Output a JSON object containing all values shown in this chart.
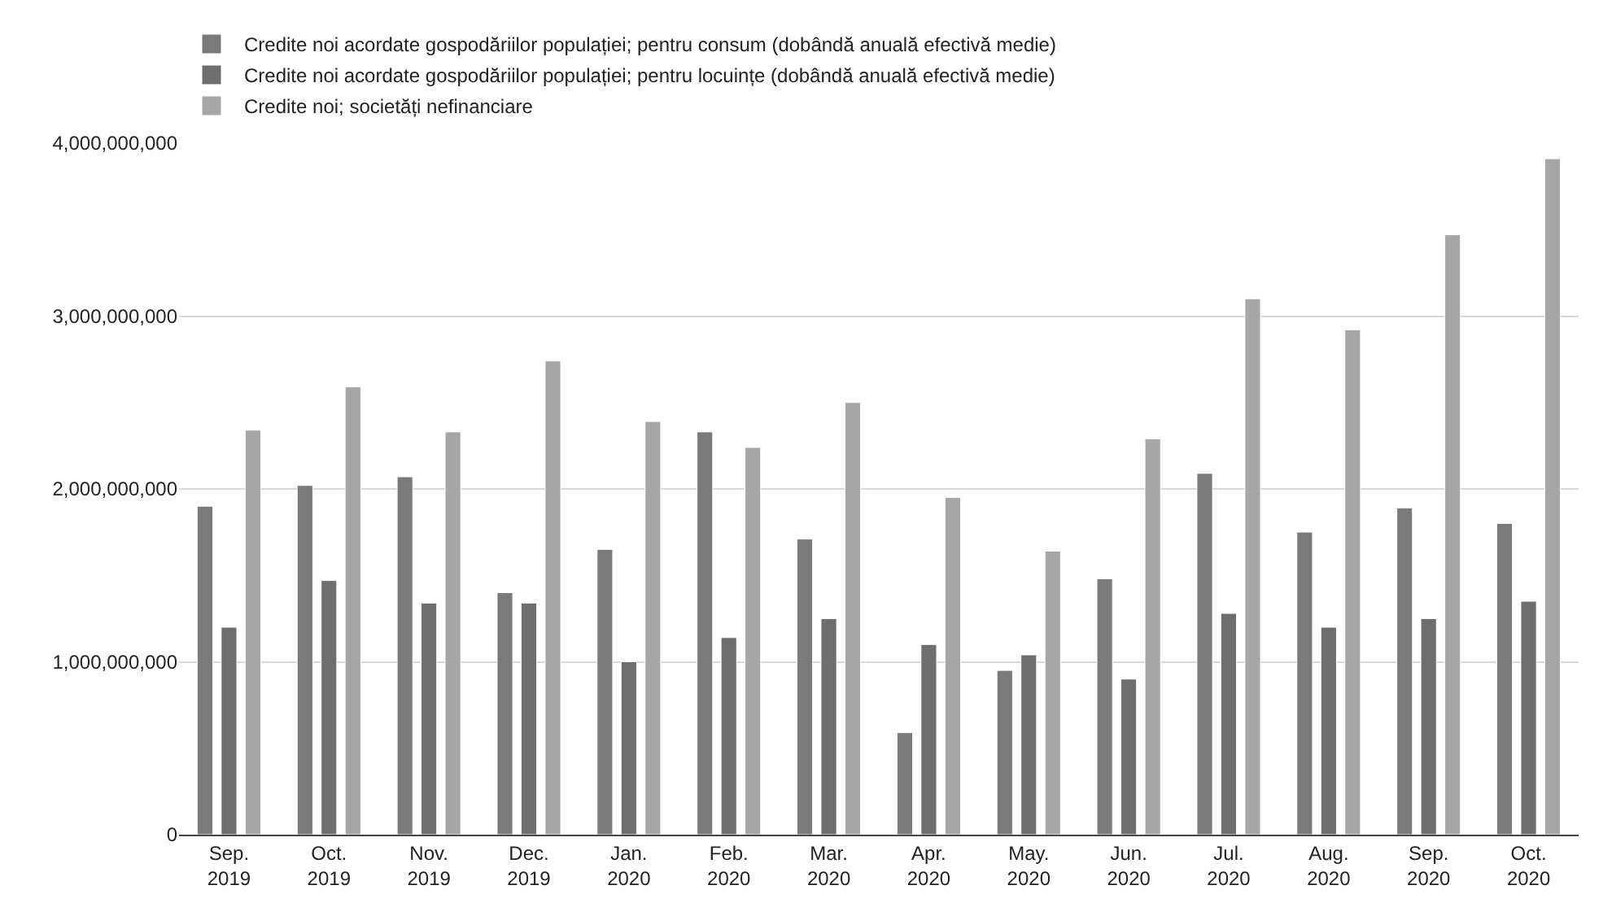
{
  "chart_data": {
    "type": "bar",
    "categories": [
      "Sep.\n2019",
      "Oct.\n2019",
      "Nov.\n2019",
      "Dec.\n2019",
      "Jan.\n2020",
      "Feb.\n2020",
      "Mar.\n2020",
      "Apr.\n2020",
      "May.\n2020",
      "Jun.\n2020",
      "Jul.\n2020",
      "Aug.\n2020",
      "Sep.\n2020",
      "Oct.\n2020"
    ],
    "series": [
      {
        "name": "Credite noi acordate gospodăriilor populației; pentru consum (dobândă anuală efectivă medie)",
        "color": "#7a7a7a",
        "values": [
          1900000000,
          2020000000,
          2070000000,
          1400000000,
          1650000000,
          2330000000,
          1710000000,
          590000000,
          950000000,
          1480000000,
          2090000000,
          1750000000,
          1890000000,
          1800000000
        ]
      },
      {
        "name": "Credite noi acordate gospodăriilor populației; pentru locuințe (dobândă anuală efectivă medie)",
        "color": "#6e6e6e",
        "values": [
          1200000000,
          1470000000,
          1340000000,
          1340000000,
          1000000000,
          1140000000,
          1250000000,
          1100000000,
          1040000000,
          900000000,
          1280000000,
          1200000000,
          1250000000,
          1350000000
        ]
      },
      {
        "name": "Credite noi; societăți nefinanciare",
        "color": "#a6a6a6",
        "values": [
          2340000000,
          2590000000,
          2330000000,
          2740000000,
          2390000000,
          2240000000,
          2500000000,
          1950000000,
          1640000000,
          2290000000,
          3100000000,
          2920000000,
          3470000000,
          3910000000
        ]
      }
    ],
    "ylim": [
      0,
      4000000000
    ],
    "yticks": [
      0,
      {
        "value": 1000000000,
        "label": "1,000,000,000"
      },
      {
        "value": 2000000000,
        "label": "2,000,000,000"
      },
      {
        "value": 3000000000,
        "label": "3,000,000,000"
      },
      {
        "value": 4000000000,
        "label": "4,000,000,000"
      }
    ],
    "grid": "y",
    "legend": "top left"
  }
}
